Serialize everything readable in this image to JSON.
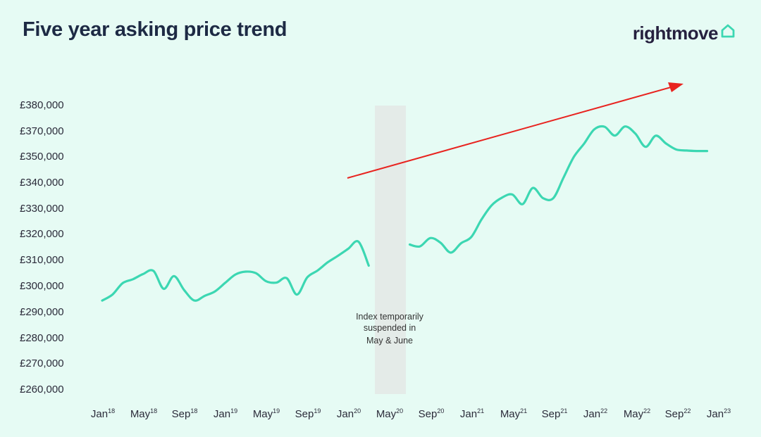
{
  "header": {
    "title": "Five year asking price trend",
    "brand": "rightmove"
  },
  "annotation": {
    "lines": [
      "Index temporarily",
      "suspended in",
      "May & June"
    ]
  },
  "colors": {
    "line": "#3cd7b2",
    "arrow": "#e8231f",
    "suspension_band": "#e4ebe8",
    "background": "#e6fbf4",
    "title": "#1d2a44"
  },
  "chart_data": {
    "type": "line",
    "title": "Five year asking price trend",
    "xlabel": "",
    "ylabel": "",
    "ylim": [
      260000,
      380000
    ],
    "y_ticks": [
      380000,
      370000,
      350000,
      340000,
      330000,
      320000,
      310000,
      300000,
      290000,
      280000,
      270000,
      260000
    ],
    "y_tick_labels": [
      "£380,000",
      "£370,000",
      "£350,000",
      "£340,000",
      "£330,000",
      "£320,000",
      "£310,000",
      "£300,000",
      "£290,000",
      "£280,000",
      "£270,000",
      "£260,000"
    ],
    "x_tick_labels": [
      {
        "month": "Jan",
        "year": "18"
      },
      {
        "month": "May",
        "year": "18"
      },
      {
        "month": "Sep",
        "year": "18"
      },
      {
        "month": "Jan",
        "year": "19"
      },
      {
        "month": "May",
        "year": "19"
      },
      {
        "month": "Sep",
        "year": "19"
      },
      {
        "month": "Jan",
        "year": "20"
      },
      {
        "month": "May",
        "year": "20"
      },
      {
        "month": "Sep",
        "year": "20"
      },
      {
        "month": "Jan",
        "year": "21"
      },
      {
        "month": "May",
        "year": "21"
      },
      {
        "month": "Sep",
        "year": "21"
      },
      {
        "month": "Jan",
        "year": "22"
      },
      {
        "month": "May",
        "year": "22"
      },
      {
        "month": "Sep",
        "year": "22"
      },
      {
        "month": "Jan",
        "year": "23"
      }
    ],
    "suspended": [
      "May 2020",
      "Jun 2020"
    ],
    "grid": false,
    "legend": "none",
    "series": [
      {
        "segment": "before suspension",
        "x": [
          "2018-01",
          "2018-02",
          "2018-03",
          "2018-04",
          "2018-05",
          "2018-06",
          "2018-07",
          "2018-08",
          "2018-09",
          "2018-10",
          "2018-11",
          "2018-12",
          "2019-01",
          "2019-02",
          "2019-03",
          "2019-04",
          "2019-05",
          "2019-06",
          "2019-07",
          "2019-08",
          "2019-09",
          "2019-10",
          "2019-11",
          "2019-12",
          "2020-01",
          "2020-02",
          "2020-03"
        ],
        "values": [
          294300,
          296600,
          301000,
          302500,
          304500,
          305700,
          298800,
          303700,
          298300,
          294300,
          296100,
          297800,
          301100,
          304300,
          305400,
          304800,
          301700,
          301200,
          302900,
          296600,
          303200,
          305800,
          309000,
          311500,
          314200,
          316900,
          307700
        ]
      },
      {
        "segment": "after suspension",
        "x": [
          "2020-07",
          "2020-08",
          "2020-09",
          "2020-10",
          "2020-11",
          "2020-12",
          "2021-01",
          "2021-02",
          "2021-03",
          "2021-04",
          "2021-05",
          "2021-06",
          "2021-07",
          "2021-08",
          "2021-09",
          "2021-10",
          "2021-11",
          "2021-12",
          "2022-01",
          "2022-02",
          "2022-03",
          "2022-04",
          "2022-05",
          "2022-06",
          "2022-07",
          "2022-08",
          "2022-09",
          "2022-10",
          "2022-11",
          "2022-12"
        ],
        "values": [
          315800,
          315100,
          318300,
          316500,
          312700,
          316300,
          318700,
          325600,
          331200,
          334100,
          335300,
          331600,
          337800,
          333900,
          333900,
          341800,
          349700,
          359900,
          370600,
          371600,
          366300,
          371700,
          367900,
          357400,
          366200,
          360000,
          355300,
          354500,
          354100,
          354100
        ]
      }
    ]
  }
}
